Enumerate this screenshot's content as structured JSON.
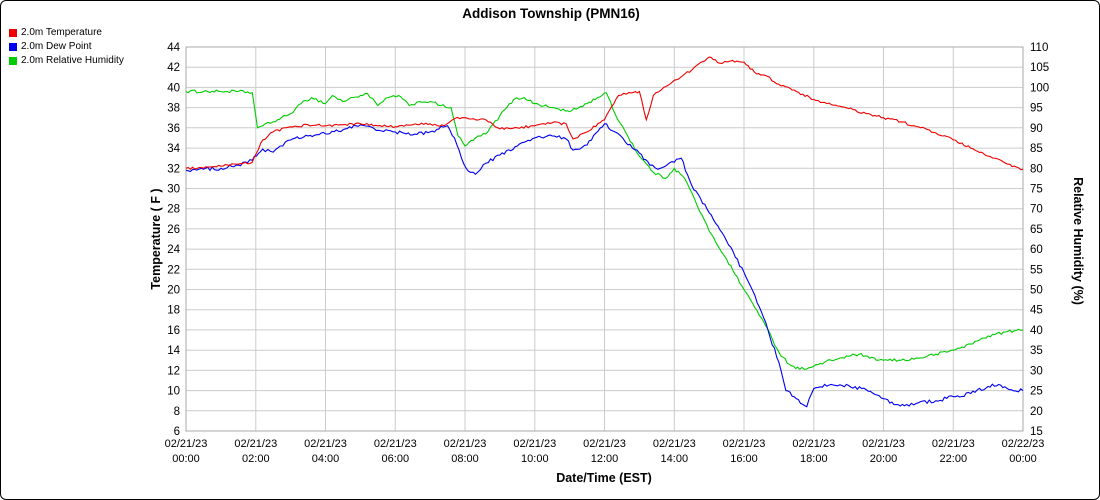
{
  "title": "Addison Township (PMN16)",
  "legend": {
    "items": [
      {
        "label": "2.0m Temperature",
        "color": "#ee0000"
      },
      {
        "label": "2.0m Dew Point",
        "color": "#0000ee"
      },
      {
        "label": "2.0m Relative Humidity",
        "color": "#00cc00"
      }
    ]
  },
  "chart_data": {
    "type": "line",
    "title": "Addison Township (PMN16)",
    "xlabel": "Date/Time (EST)",
    "ylabel_left": "Temperature ( F )",
    "ylabel_right": "Relative Humidity (%)",
    "x_range": [
      0,
      24
    ],
    "grid": true,
    "grid_color": "#cccccc",
    "x_ticks": [
      {
        "hour": 0,
        "date": "02/21/23",
        "time": "00:00"
      },
      {
        "hour": 2,
        "date": "02/21/23",
        "time": "02:00"
      },
      {
        "hour": 4,
        "date": "02/21/23",
        "time": "04:00"
      },
      {
        "hour": 6,
        "date": "02/21/23",
        "time": "06:00"
      },
      {
        "hour": 8,
        "date": "02/21/23",
        "time": "08:00"
      },
      {
        "hour": 10,
        "date": "02/21/23",
        "time": "10:00"
      },
      {
        "hour": 12,
        "date": "02/21/23",
        "time": "12:00"
      },
      {
        "hour": 14,
        "date": "02/21/23",
        "time": "14:00"
      },
      {
        "hour": 16,
        "date": "02/21/23",
        "time": "16:00"
      },
      {
        "hour": 18,
        "date": "02/21/23",
        "time": "18:00"
      },
      {
        "hour": 20,
        "date": "02/21/23",
        "time": "20:00"
      },
      {
        "hour": 22,
        "date": "02/21/23",
        "time": "22:00"
      },
      {
        "hour": 24,
        "date": "02/22/23",
        "time": "00:00"
      }
    ],
    "y_left": {
      "min": 6,
      "max": 44,
      "step": 2
    },
    "y_right": {
      "min": 15,
      "max": 110,
      "step": 5
    },
    "series": [
      {
        "name": "2.0m Relative Humidity",
        "axis": "right",
        "color": "#00cc00",
        "noise": 0.35,
        "x": [
          0,
          0.5,
          1,
          1.5,
          1.9,
          2.05,
          2.2,
          2.5,
          3,
          3.3,
          3.6,
          4,
          4.2,
          4.5,
          4.8,
          5,
          5.2,
          5.5,
          5.8,
          6.1,
          6.4,
          6.7,
          7,
          7.3,
          7.6,
          7.8,
          8.0,
          8.3,
          8.6,
          9,
          9.4,
          9.7,
          10,
          10.5,
          11,
          11.5,
          11.8,
          12.05,
          12.3,
          12.6,
          13,
          13.4,
          13.75,
          14,
          14.3,
          14.6,
          15,
          15.5,
          16,
          16.5,
          17,
          17.3,
          17.6,
          18,
          18.5,
          19,
          19.3,
          19.6,
          20,
          20.5,
          21,
          21.5,
          22,
          22.5,
          23,
          23.5,
          24
        ],
        "values": [
          99,
          99,
          99,
          99,
          98.7,
          90,
          90.5,
          91.5,
          93.5,
          96,
          97.5,
          96,
          98,
          96.5,
          97.5,
          98,
          98.5,
          95.5,
          97.5,
          98,
          95.5,
          96.5,
          96.5,
          95.5,
          95,
          88,
          85.5,
          87.5,
          88.5,
          93,
          97,
          97.5,
          96,
          95,
          94,
          96,
          97.5,
          98.7,
          93.5,
          89,
          83,
          79,
          77.5,
          80,
          77.5,
          72,
          64.5,
          57.5,
          50,
          43,
          34.5,
          31.5,
          30.3,
          31,
          32.5,
          33.5,
          34,
          33,
          32.5,
          32.5,
          33,
          34,
          35,
          36.5,
          38.5,
          39.5,
          40
        ]
      },
      {
        "name": "2.0m Dew Point",
        "axis": "left",
        "color": "#0000ee",
        "noise": 0.18,
        "x": [
          0,
          0.5,
          1,
          1.5,
          1.9,
          2.2,
          2.5,
          2.7,
          3,
          3.5,
          4,
          4.5,
          5,
          5.3,
          5.6,
          6,
          6.5,
          7,
          7.5,
          7.7,
          7.9,
          8.1,
          8.3,
          8.6,
          9,
          9.5,
          10,
          10.5,
          10.9,
          11.1,
          11.5,
          12,
          12.3,
          12.6,
          13,
          13.3,
          13.6,
          14,
          14.2,
          14.5,
          15,
          15.5,
          16,
          16.5,
          17,
          17.2,
          17.5,
          17.8,
          18,
          18.5,
          19,
          19.5,
          20,
          20.3,
          20.6,
          21,
          21.5,
          22,
          22.5,
          23,
          23.3,
          23.6,
          24
        ],
        "values": [
          31.8,
          31.9,
          32.0,
          32.3,
          32.8,
          33.9,
          33.6,
          34.2,
          34.8,
          35.2,
          35.4,
          35.8,
          36.3,
          36.1,
          35.7,
          35.6,
          35.3,
          35.6,
          36.2,
          35.0,
          33.0,
          31.7,
          31.4,
          32.5,
          33.3,
          34.2,
          35.0,
          35.2,
          34.9,
          33.8,
          34.3,
          36.4,
          35.6,
          34.6,
          33.5,
          32.3,
          32.0,
          32.6,
          33.0,
          30.3,
          27.6,
          24.8,
          21.7,
          17.8,
          12.8,
          10.0,
          9.2,
          8.4,
          10.2,
          10.6,
          10.5,
          10.1,
          9.2,
          8.6,
          8.5,
          8.8,
          9.0,
          9.4,
          9.7,
          10.4,
          10.6,
          10.1,
          10.0
        ]
      },
      {
        "name": "2.0m Temperature",
        "axis": "left",
        "color": "#ee0000",
        "noise": 0.12,
        "x": [
          0,
          0.5,
          1,
          1.5,
          1.9,
          2.2,
          2.5,
          3,
          3.5,
          4,
          4.5,
          5,
          5.5,
          6,
          6.5,
          7,
          7.4,
          7.7,
          8.0,
          8.3,
          8.6,
          9.0,
          9.5,
          10,
          10.5,
          10.9,
          11.1,
          11.5,
          12,
          12.4,
          12.7,
          13.0,
          13.2,
          13.4,
          13.7,
          14,
          14.5,
          15,
          15.3,
          15.6,
          16,
          16.3,
          16.6,
          17,
          17.5,
          18,
          18.5,
          19,
          19.5,
          20,
          20.5,
          21,
          21.5,
          22,
          22.5,
          23,
          23.5,
          24
        ],
        "values": [
          32,
          32,
          32.2,
          32.4,
          32.6,
          34.8,
          35.6,
          36.1,
          36.3,
          36.2,
          36.3,
          36.4,
          36.2,
          36.1,
          36.3,
          36.4,
          36.2,
          36.9,
          37,
          36.8,
          36.8,
          35.9,
          36,
          36.2,
          36.5,
          36.4,
          34.9,
          35.6,
          36.8,
          39.2,
          39.5,
          39.6,
          36.8,
          39.2,
          40,
          40.7,
          41.7,
          43,
          42.4,
          42.6,
          42.5,
          41.5,
          41.2,
          40.3,
          39.6,
          38.8,
          38.3,
          37.9,
          37.4,
          37,
          36.6,
          36.1,
          35.5,
          34.8,
          34,
          33.2,
          32.5,
          31.9
        ]
      }
    ]
  }
}
